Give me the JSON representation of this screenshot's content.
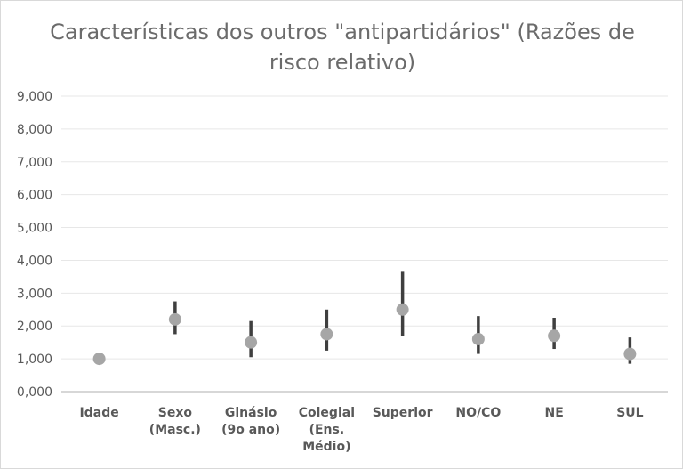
{
  "chart_data": {
    "type": "scatter",
    "title_lines": [
      "Características dos outros \"antipartidários\" (Razões de",
      "risco relativo)"
    ],
    "categories": [
      [
        "Idade"
      ],
      [
        "Sexo",
        "(Masc.)"
      ],
      [
        "Ginásio",
        "(9o ano)"
      ],
      [
        "Colegial",
        "(Ens.",
        "Médio)"
      ],
      [
        "Superior"
      ],
      [
        "NO/CO"
      ],
      [
        "NE"
      ],
      [
        "SUL"
      ]
    ],
    "points": [
      {
        "value": 1.0,
        "low": 1.0,
        "high": 1.0
      },
      {
        "value": 2.2,
        "low": 1.75,
        "high": 2.75
      },
      {
        "value": 1.5,
        "low": 1.05,
        "high": 2.15
      },
      {
        "value": 1.75,
        "low": 1.25,
        "high": 2.5
      },
      {
        "value": 2.5,
        "low": 1.7,
        "high": 3.65
      },
      {
        "value": 1.6,
        "low": 1.15,
        "high": 2.3
      },
      {
        "value": 1.7,
        "low": 1.3,
        "high": 2.25
      },
      {
        "value": 1.15,
        "low": 0.85,
        "high": 1.65
      }
    ],
    "y_ticks": [
      "0,000",
      "1,000",
      "2,000",
      "3,000",
      "4,000",
      "5,000",
      "6,000",
      "7,000",
      "8,000",
      "9,000"
    ],
    "ylim": [
      0,
      9
    ],
    "grid": true,
    "colors": {
      "marker": "#a6a6a6",
      "bar": "#3f3f3f",
      "grid": "#e7e7e7",
      "axis": "#bfbfbf",
      "text": "#595959"
    }
  }
}
